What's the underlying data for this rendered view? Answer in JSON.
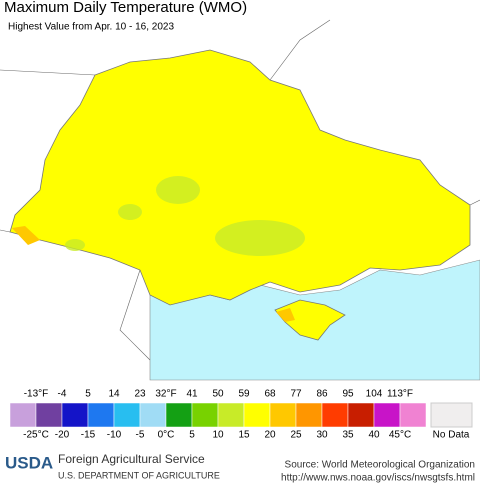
{
  "header": {
    "title": "Maximum Daily Temperature (WMO)",
    "subtitle": "Highest Value from Apr. 10 - 16, 2023"
  },
  "legend": {
    "fahrenheit_labels": [
      "-13°F",
      "-4",
      "5",
      "14",
      "23",
      "32°F",
      "41",
      "50",
      "59",
      "68",
      "77",
      "86",
      "95",
      "104",
      "113°F"
    ],
    "celsius_labels": [
      "-25°C",
      "-20",
      "-15",
      "-10",
      "-5",
      "0°C",
      "5",
      "10",
      "15",
      "20",
      "25",
      "30",
      "35",
      "40",
      "45°C"
    ],
    "colors": [
      "#c8a0dc",
      "#7040a0",
      "#1414c8",
      "#1e78f0",
      "#28bef0",
      "#a0dcf5",
      "#14a014",
      "#78d200",
      "#c8eb28",
      "#ffff00",
      "#ffc800",
      "#ff9600",
      "#ff3c00",
      "#c81e00",
      "#c814c8",
      "#f082d2"
    ],
    "no_data_label": "No Data",
    "no_data_color": "#f0eeee"
  },
  "footer": {
    "logo": "USDA",
    "agency": "Foreign Agricultural Service",
    "department": "U.S. DEPARTMENT OF AGRICULTURE",
    "source": "Source: World Meteorological Organization",
    "url": "http://www.nws.noaa.gov/iscs/nwsgtsfs.html"
  }
}
